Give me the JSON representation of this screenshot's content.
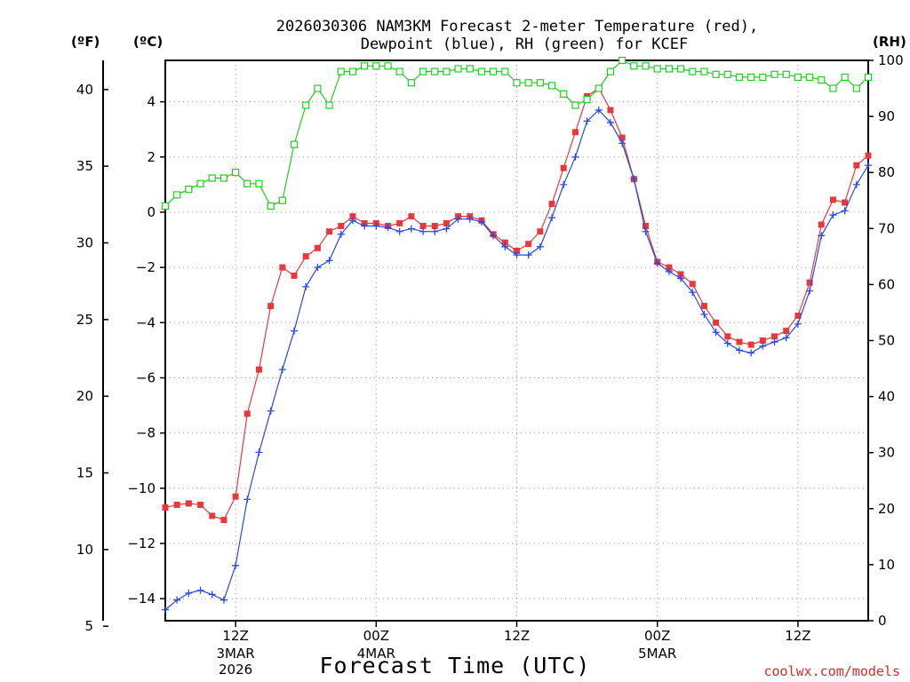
{
  "chart_data": {
    "type": "line",
    "title_line1": "2026030306 NAM3KM Forecast 2-meter Temperature (red),",
    "title_line2": "Dewpoint (blue), RH (green) for KCEF",
    "xlabel": "Forecast Time (UTC)",
    "credit": "coolwx.com/models",
    "units": {
      "fahrenheit": "(ºF)",
      "celsius": "(ºC)",
      "rh": "(RH)"
    },
    "x_range_hours": [
      6,
      66
    ],
    "y_celsius_range": [
      -14.8,
      5.5
    ],
    "y_rh_range": [
      0,
      100
    ],
    "left_f_ticks": [
      "40",
      "35",
      "30",
      "25",
      "20",
      "15",
      "10",
      "5"
    ],
    "left_c_ticks": [
      "4",
      "2",
      "0",
      "−2",
      "−4",
      "−6",
      "−8",
      "−10",
      "−12",
      "−14"
    ],
    "right_rh_ticks": [
      "100",
      "90",
      "80",
      "70",
      "60",
      "50",
      "40",
      "30",
      "20",
      "10",
      "0"
    ],
    "x_ticks": [
      {
        "hour": 12,
        "label": "12Z",
        "sub1": "3MAR",
        "sub2": "2026"
      },
      {
        "hour": 24,
        "label": "00Z",
        "sub1": "4MAR",
        "sub2": ""
      },
      {
        "hour": 36,
        "label": "12Z",
        "sub1": "",
        "sub2": ""
      },
      {
        "hour": 48,
        "label": "00Z",
        "sub1": "5MAR",
        "sub2": ""
      },
      {
        "hour": 60,
        "label": "12Z",
        "sub1": "",
        "sub2": ""
      }
    ],
    "series": [
      {
        "name": "Temperature (°C)",
        "color": "#e8383c",
        "marker": "square-filled",
        "values": [
          -10.7,
          -10.6,
          -10.55,
          -10.6,
          -11.0,
          -11.15,
          -10.3,
          -7.3,
          -5.7,
          -3.4,
          -2.0,
          -2.3,
          -1.6,
          -1.3,
          -0.7,
          -0.5,
          -0.15,
          -0.4,
          -0.4,
          -0.5,
          -0.4,
          -0.15,
          -0.5,
          -0.5,
          -0.4,
          -0.15,
          -0.15,
          -0.3,
          -0.8,
          -1.1,
          -1.4,
          -1.15,
          -0.7,
          0.3,
          1.6,
          2.9,
          4.2,
          4.5,
          3.7,
          2.7,
          1.2,
          -0.5,
          -1.8,
          -2.0,
          -2.25,
          -2.6,
          -3.4,
          -4.0,
          -4.5,
          -4.7,
          -4.8,
          -4.65,
          -4.5,
          -4.3,
          -3.75,
          -2.55,
          -0.45,
          0.45,
          0.35,
          1.7,
          2.05
        ],
        "x_start_hour": 6,
        "x_step_hours": 1
      },
      {
        "name": "Dewpoint (°C)",
        "color": "#2848e8",
        "marker": "plus",
        "values": [
          -14.4,
          -14.05,
          -13.8,
          -13.7,
          -13.85,
          -14.05,
          -12.8,
          -10.4,
          -8.7,
          -7.2,
          -5.7,
          -4.3,
          -2.7,
          -2.0,
          -1.75,
          -0.8,
          -0.3,
          -0.5,
          -0.5,
          -0.55,
          -0.7,
          -0.6,
          -0.7,
          -0.7,
          -0.6,
          -0.25,
          -0.25,
          -0.35,
          -0.85,
          -1.25,
          -1.55,
          -1.55,
          -1.25,
          -0.2,
          1.0,
          2.0,
          3.3,
          3.7,
          3.25,
          2.5,
          1.2,
          -0.7,
          -1.85,
          -2.15,
          -2.4,
          -2.9,
          -3.7,
          -4.35,
          -4.75,
          -5.0,
          -5.1,
          -4.85,
          -4.7,
          -4.55,
          -4.05,
          -2.85,
          -0.85,
          -0.1,
          0.05,
          1.0,
          1.7
        ],
        "x_start_hour": 6,
        "x_step_hours": 1
      },
      {
        "name": "RH (%)",
        "color": "#1ed01e",
        "marker": "square-open",
        "values": [
          74,
          76,
          77,
          78,
          79,
          79,
          80,
          78,
          78,
          74,
          75,
          85,
          92,
          95,
          92,
          98,
          98,
          99,
          99,
          99,
          98,
          96,
          98,
          98,
          98,
          98.5,
          98.5,
          98,
          98,
          98,
          96,
          96,
          96,
          95.5,
          94,
          92,
          93,
          95,
          98,
          100,
          99,
          99,
          98.5,
          98.5,
          98.5,
          98,
          98,
          97.5,
          97.5,
          97,
          97,
          97,
          97.5,
          97.5,
          97,
          97,
          96.5,
          95,
          97,
          95,
          97
        ],
        "x_start_hour": 6,
        "x_step_hours": 1
      }
    ]
  }
}
